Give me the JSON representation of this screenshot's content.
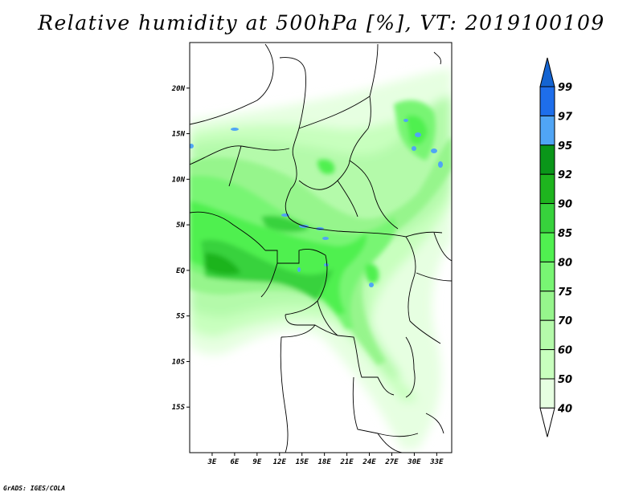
{
  "title": "Relative humidity at 500hPa [%], VT: 2019100109",
  "credit": "GrADS: IGES/COLA",
  "map": {
    "lon_range": [
      0,
      35
    ],
    "lat_range": [
      -20,
      25
    ],
    "lat_ticks": [
      {
        "value": 20,
        "label": "20N"
      },
      {
        "value": 15,
        "label": "15N"
      },
      {
        "value": 10,
        "label": "10N"
      },
      {
        "value": 5,
        "label": "5N"
      },
      {
        "value": 0,
        "label": "EQ"
      },
      {
        "value": -5,
        "label": "5S"
      },
      {
        "value": -10,
        "label": "10S"
      },
      {
        "value": -15,
        "label": "15S"
      }
    ],
    "lon_ticks": [
      {
        "value": 3,
        "label": "3E"
      },
      {
        "value": 6,
        "label": "6E"
      },
      {
        "value": 9,
        "label": "9E"
      },
      {
        "value": 12,
        "label": "12E"
      },
      {
        "value": 15,
        "label": "15E"
      },
      {
        "value": 18,
        "label": "18E"
      },
      {
        "value": 21,
        "label": "21E"
      },
      {
        "value": 24,
        "label": "24E"
      },
      {
        "value": 27,
        "label": "27E"
      },
      {
        "value": 30,
        "label": "30E"
      },
      {
        "value": 33,
        "label": "33E"
      }
    ]
  },
  "colorbar": {
    "levels": [
      "99",
      "97",
      "95",
      "92",
      "90",
      "85",
      "80",
      "75",
      "70",
      "60",
      "50",
      "40"
    ],
    "colors": [
      "#1464d2",
      "#1e6eeb",
      "#50a5f5",
      "#0a9619",
      "#1eb41e",
      "#37d23c",
      "#50f050",
      "#78f573",
      "#96f58c",
      "#b4faaa",
      "#c8ffbe",
      "#e6ffe1",
      "#ffffff"
    ]
  }
}
